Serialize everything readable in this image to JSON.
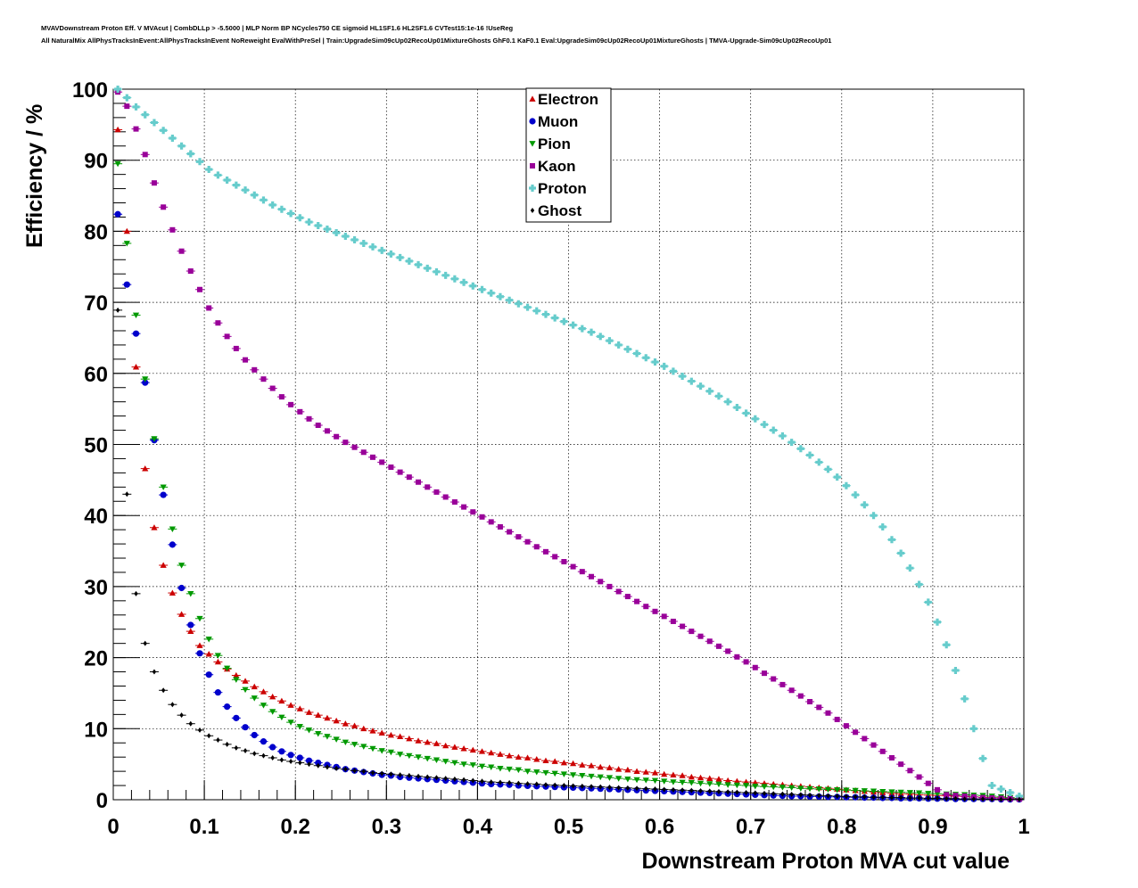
{
  "header": {
    "line1": "MVAVDownstream Proton Eff. V MVAcut | CombDLLp > -5.5000 | MLP Norm BP NCycles750 CE sigmoid HL1SF1.6 HL2SF1.6 CVTest15:1e-16 !UseReg",
    "line2": "All NaturalMix AllPhysTracksInEvent:AllPhysTracksInEvent NoReweight EvalWithPreSel | Train:UpgradeSim09cUp02RecoUp01MixtureGhosts GhF0.1 KaF0.1 Eval:UpgradeSim09cUp02RecoUp01MixtureGhosts | TMVA-Upgrade-Sim09cUp02RecoUp01"
  },
  "chart_data": {
    "type": "scatter",
    "xlabel": "Downstream Proton MVA cut value",
    "ylabel": "Efficiency / %",
    "xlim": [
      0,
      1
    ],
    "ylim": [
      0,
      100
    ],
    "x_ticks": [
      "0",
      "0.1",
      "0.2",
      "0.3",
      "0.4",
      "0.5",
      "0.6",
      "0.7",
      "0.8",
      "0.9",
      "1"
    ],
    "y_ticks": [
      "0",
      "10",
      "20",
      "30",
      "40",
      "50",
      "60",
      "70",
      "80",
      "90",
      "100"
    ],
    "grid": true,
    "legend_position": "top-center",
    "x": [
      0.005,
      0.015,
      0.025,
      0.035,
      0.045,
      0.055,
      0.065,
      0.075,
      0.085,
      0.095,
      0.105,
      0.115,
      0.125,
      0.135,
      0.145,
      0.155,
      0.165,
      0.175,
      0.185,
      0.195,
      0.205,
      0.215,
      0.225,
      0.235,
      0.245,
      0.255,
      0.265,
      0.275,
      0.285,
      0.295,
      0.305,
      0.315,
      0.325,
      0.335,
      0.345,
      0.355,
      0.365,
      0.375,
      0.385,
      0.395,
      0.405,
      0.415,
      0.425,
      0.435,
      0.445,
      0.455,
      0.465,
      0.475,
      0.485,
      0.495,
      0.505,
      0.515,
      0.525,
      0.535,
      0.545,
      0.555,
      0.565,
      0.575,
      0.585,
      0.595,
      0.605,
      0.615,
      0.625,
      0.635,
      0.645,
      0.655,
      0.665,
      0.675,
      0.685,
      0.695,
      0.705,
      0.715,
      0.725,
      0.735,
      0.745,
      0.755,
      0.765,
      0.775,
      0.785,
      0.795,
      0.805,
      0.815,
      0.825,
      0.835,
      0.845,
      0.855,
      0.865,
      0.875,
      0.885,
      0.895,
      0.905,
      0.915,
      0.925,
      0.935,
      0.945,
      0.955,
      0.965,
      0.975,
      0.985,
      0.995
    ],
    "series": [
      {
        "name": "Electron",
        "color": "#cc0000",
        "marker": "triangle-up",
        "values": [
          94.3,
          80.0,
          60.9,
          46.6,
          38.3,
          33.0,
          29.1,
          26.1,
          23.7,
          21.7,
          20.5,
          19.4,
          18.4,
          17.5,
          16.7,
          15.9,
          15.2,
          14.5,
          13.9,
          13.3,
          12.8,
          12.3,
          11.9,
          11.5,
          11.1,
          10.7,
          10.4,
          10.0,
          9.7,
          9.4,
          9.1,
          8.9,
          8.6,
          8.3,
          8.1,
          7.9,
          7.6,
          7.4,
          7.2,
          7.0,
          6.8,
          6.6,
          6.4,
          6.2,
          6.0,
          5.9,
          5.7,
          5.5,
          5.4,
          5.2,
          5.1,
          4.9,
          4.8,
          4.6,
          4.5,
          4.3,
          4.2,
          4.0,
          3.9,
          3.8,
          3.6,
          3.5,
          3.4,
          3.2,
          3.1,
          3.0,
          2.9,
          2.7,
          2.6,
          2.5,
          2.4,
          2.3,
          2.2,
          2.1,
          2.0,
          1.9,
          1.8,
          1.7,
          1.6,
          1.5,
          1.4,
          1.3,
          1.2,
          1.1,
          1.0,
          0.9,
          0.85,
          0.8,
          0.7,
          0.65,
          0.6,
          0.55,
          0.5,
          0.45,
          0.4,
          0.35,
          0.3,
          0.25,
          0.2,
          0.15
        ]
      },
      {
        "name": "Muon",
        "color": "#0000cc",
        "marker": "circle",
        "values": [
          82.4,
          72.5,
          65.6,
          58.7,
          50.6,
          42.9,
          35.9,
          29.8,
          24.6,
          20.6,
          17.6,
          15.1,
          13.1,
          11.5,
          10.2,
          9.1,
          8.2,
          7.4,
          6.8,
          6.3,
          5.9,
          5.5,
          5.2,
          4.9,
          4.6,
          4.3,
          4.1,
          3.9,
          3.7,
          3.5,
          3.4,
          3.2,
          3.1,
          3.0,
          2.9,
          2.8,
          2.7,
          2.6,
          2.5,
          2.4,
          2.3,
          2.2,
          2.15,
          2.1,
          2.0,
          1.95,
          1.9,
          1.85,
          1.8,
          1.75,
          1.7,
          1.65,
          1.6,
          1.55,
          1.5,
          1.45,
          1.4,
          1.35,
          1.3,
          1.25,
          1.2,
          1.15,
          1.1,
          1.05,
          1.0,
          0.95,
          0.9,
          0.85,
          0.8,
          0.75,
          0.7,
          0.65,
          0.6,
          0.55,
          0.5,
          0.5,
          0.45,
          0.45,
          0.4,
          0.4,
          0.35,
          0.35,
          0.3,
          0.3,
          0.25,
          0.25,
          0.2,
          0.2,
          0.2,
          0.15,
          0.15,
          0.15,
          0.1,
          0.1,
          0.1,
          0.1,
          0.1,
          0.05,
          0.05,
          0.05
        ]
      },
      {
        "name": "Pion",
        "color": "#009900",
        "marker": "triangle-down",
        "values": [
          89.5,
          78.3,
          68.2,
          59.2,
          50.8,
          44.0,
          38.1,
          33.0,
          29.0,
          25.5,
          22.6,
          20.3,
          18.5,
          16.9,
          15.5,
          14.3,
          13.3,
          12.4,
          11.6,
          10.9,
          10.3,
          9.8,
          9.3,
          8.9,
          8.5,
          8.1,
          7.8,
          7.5,
          7.2,
          6.9,
          6.7,
          6.4,
          6.2,
          6.0,
          5.8,
          5.6,
          5.4,
          5.2,
          5.0,
          4.9,
          4.7,
          4.6,
          4.4,
          4.3,
          4.2,
          4.0,
          3.9,
          3.8,
          3.7,
          3.6,
          3.5,
          3.4,
          3.3,
          3.2,
          3.1,
          3.0,
          2.9,
          2.8,
          2.75,
          2.7,
          2.6,
          2.5,
          2.45,
          2.4,
          2.3,
          2.25,
          2.2,
          2.1,
          2.05,
          2.0,
          1.9,
          1.85,
          1.8,
          1.75,
          1.7,
          1.6,
          1.55,
          1.5,
          1.45,
          1.4,
          1.35,
          1.3,
          1.25,
          1.2,
          1.15,
          1.1,
          1.05,
          1.0,
          0.95,
          0.9,
          0.85,
          0.8,
          0.75,
          0.7,
          0.65,
          0.6,
          0.5,
          0.4,
          0.3,
          0.2
        ]
      },
      {
        "name": "Kaon",
        "color": "#990099",
        "marker": "square",
        "values": [
          99.6,
          97.6,
          94.4,
          90.8,
          86.8,
          83.4,
          80.2,
          77.2,
          74.4,
          71.8,
          69.2,
          67.1,
          65.2,
          63.5,
          61.9,
          60.5,
          59.2,
          57.9,
          56.7,
          55.6,
          54.6,
          53.6,
          52.7,
          51.9,
          51.1,
          50.3,
          49.6,
          48.9,
          48.2,
          47.5,
          46.8,
          46.1,
          45.4,
          44.7,
          44.0,
          43.3,
          42.6,
          41.9,
          41.2,
          40.5,
          39.8,
          39.1,
          38.4,
          37.7,
          37.0,
          36.3,
          35.6,
          34.9,
          34.2,
          33.5,
          32.8,
          32.1,
          31.4,
          30.7,
          30.0,
          29.3,
          28.6,
          27.9,
          27.2,
          26.5,
          25.8,
          25.1,
          24.4,
          23.7,
          23.0,
          22.3,
          21.6,
          20.9,
          20.1,
          19.4,
          18.6,
          17.8,
          17.0,
          16.2,
          15.4,
          14.6,
          13.8,
          13.0,
          12.2,
          11.3,
          10.4,
          9.5,
          8.6,
          7.7,
          6.8,
          5.9,
          5.0,
          4.1,
          3.2,
          2.3,
          1.4,
          0.7,
          0.6,
          0.5,
          0.4,
          0.3,
          0.25,
          0.2,
          0.15,
          0.1
        ]
      },
      {
        "name": "Proton",
        "color": "#66cccc",
        "marker": "cross",
        "values": [
          100.0,
          98.8,
          97.5,
          96.4,
          95.3,
          94.2,
          93.1,
          92.0,
          90.9,
          89.8,
          88.7,
          87.9,
          87.2,
          86.5,
          85.8,
          85.1,
          84.4,
          83.7,
          83.1,
          82.5,
          81.9,
          81.3,
          80.8,
          80.3,
          79.8,
          79.3,
          78.8,
          78.3,
          77.8,
          77.3,
          76.8,
          76.3,
          75.8,
          75.3,
          74.8,
          74.3,
          73.8,
          73.3,
          72.8,
          72.3,
          71.8,
          71.3,
          70.8,
          70.3,
          69.8,
          69.3,
          68.8,
          68.3,
          67.8,
          67.3,
          66.8,
          66.3,
          65.8,
          65.2,
          64.6,
          64.0,
          63.4,
          62.8,
          62.2,
          61.6,
          61.0,
          60.3,
          59.6,
          58.9,
          58.2,
          57.5,
          56.8,
          56.0,
          55.2,
          54.4,
          53.6,
          52.8,
          52.0,
          51.2,
          50.3,
          49.4,
          48.5,
          47.5,
          46.5,
          45.4,
          44.2,
          42.9,
          41.5,
          40.0,
          38.4,
          36.6,
          34.7,
          32.6,
          30.3,
          27.8,
          25.0,
          21.8,
          18.2,
          14.2,
          10.0,
          5.8,
          2.0,
          1.5,
          1.0,
          0.5
        ]
      },
      {
        "name": "Ghost",
        "color": "#000000",
        "marker": "diamond",
        "values": [
          68.9,
          43.0,
          29.0,
          22.0,
          18.0,
          15.4,
          13.4,
          11.9,
          10.7,
          9.8,
          9.0,
          8.4,
          7.8,
          7.3,
          6.9,
          6.5,
          6.2,
          5.9,
          5.6,
          5.4,
          5.2,
          5.0,
          4.8,
          4.6,
          4.4,
          4.3,
          4.1,
          4.0,
          3.8,
          3.7,
          3.6,
          3.5,
          3.4,
          3.3,
          3.2,
          3.1,
          3.0,
          2.9,
          2.8,
          2.7,
          2.6,
          2.5,
          2.45,
          2.4,
          2.3,
          2.25,
          2.2,
          2.1,
          2.05,
          2.0,
          1.95,
          1.9,
          1.85,
          1.8,
          1.75,
          1.7,
          1.65,
          1.6,
          1.55,
          1.5,
          1.45,
          1.4,
          1.35,
          1.3,
          1.25,
          1.2,
          1.15,
          1.1,
          1.05,
          1.0,
          0.95,
          0.9,
          0.85,
          0.8,
          0.75,
          0.7,
          0.65,
          0.6,
          0.55,
          0.5,
          0.45,
          0.4,
          0.4,
          0.35,
          0.35,
          0.3,
          0.3,
          0.25,
          0.25,
          0.2,
          0.2,
          0.15,
          0.15,
          0.1,
          0.1,
          0.1,
          0.05,
          0.05,
          0.05,
          0.05
        ]
      }
    ]
  }
}
